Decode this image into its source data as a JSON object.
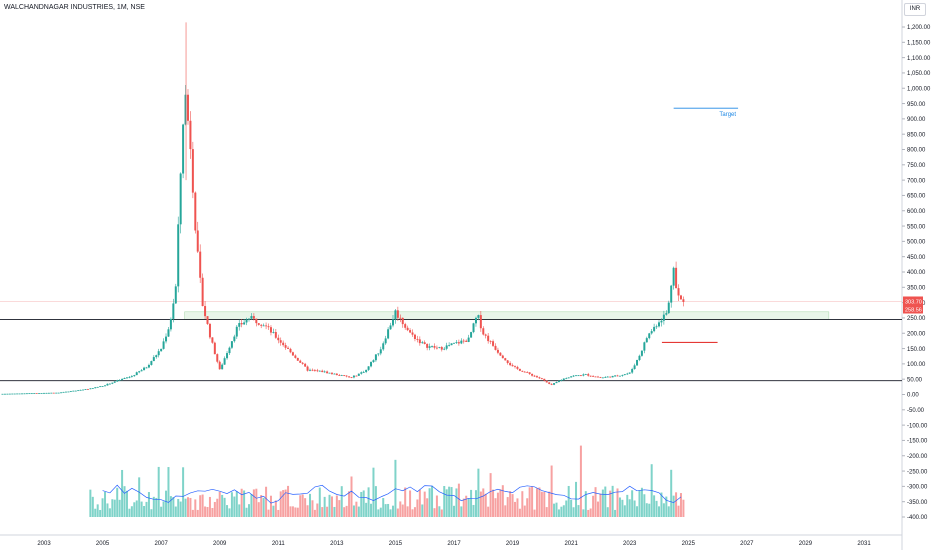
{
  "symbol_title": "WALCHANDNAGAR INDUSTRIES, 1M, NSE",
  "currency": "INR",
  "price_labels": {
    "last": "303.70",
    "second": "258.56"
  },
  "colors": {
    "up": "#26a69a",
    "down": "#ef5350",
    "vol_up": "#7fd3c9",
    "vol_down": "#f7a1a1",
    "ma": "#2962ff",
    "support": "#131722",
    "zone": "#e8f5e9",
    "target": "#1e88e5",
    "stop": "#e53935",
    "label_bg": "#ef5350"
  },
  "chart_data": {
    "type": "candlestick",
    "title": "WALCHANDNAGAR INDUSTRIES, 1M, NSE",
    "price_axis": {
      "ticks": [
        1200,
        1150,
        1100,
        1050,
        1000,
        950,
        900,
        850,
        800,
        750,
        700,
        650,
        600,
        550,
        500,
        450,
        400,
        350,
        300,
        250,
        200,
        150,
        100,
        50,
        0,
        -50,
        -100,
        -150,
        -200,
        -250,
        -300,
        -350,
        -400
      ],
      "tick_labels": [
        "1,200.00",
        "1,150.00",
        "1,100.00",
        "1,050.00",
        "1,000.00",
        "950.00",
        "900.00",
        "850.00",
        "800.00",
        "750.00",
        "700.00",
        "650.00",
        "600.00",
        "550.00",
        "500.00",
        "450.00",
        "400.00",
        "350.00",
        "300.00",
        "250.00",
        "200.00",
        "150.00",
        "100.00",
        "50.00",
        "0.00",
        "-50.00",
        "-100.00",
        "-150.00",
        "-200.00",
        "-250.00",
        "-300.00",
        "-350.00",
        "-400.00"
      ],
      "ylim": [
        -410,
        1250
      ]
    },
    "time_axis": {
      "labels": [
        "2003",
        "2005",
        "2007",
        "2009",
        "2011",
        "2013",
        "2015",
        "2017",
        "2019",
        "2021",
        "2023",
        "2025",
        "2027",
        "2029",
        "2031"
      ],
      "xlim": [
        2001.5,
        2032.5
      ]
    },
    "price_series": [
      [
        2001.5,
        2
      ],
      [
        2002,
        3
      ],
      [
        2002.5,
        4
      ],
      [
        2003,
        5
      ],
      [
        2003.5,
        6
      ],
      [
        2004,
        12
      ],
      [
        2004.5,
        18
      ],
      [
        2005,
        28
      ],
      [
        2005.5,
        45
      ],
      [
        2006,
        60
      ],
      [
        2006.5,
        90
      ],
      [
        2007,
        150
      ],
      [
        2007.3,
        230
      ],
      [
        2007.5,
        350
      ],
      [
        2007.7,
        800
      ],
      [
        2007.8,
        1000
      ],
      [
        2008,
        820
      ],
      [
        2008.2,
        500
      ],
      [
        2008.4,
        300
      ],
      [
        2008.7,
        180
      ],
      [
        2009,
        80
      ],
      [
        2009.3,
        150
      ],
      [
        2009.6,
        220
      ],
      [
        2010,
        250
      ],
      [
        2010.5,
        230
      ],
      [
        2011,
        180
      ],
      [
        2011.5,
        130
      ],
      [
        2012,
        80
      ],
      [
        2012.5,
        75
      ],
      [
        2013,
        65
      ],
      [
        2013.5,
        55
      ],
      [
        2014,
        80
      ],
      [
        2014.5,
        150
      ],
      [
        2015,
        270
      ],
      [
        2015.5,
        200
      ],
      [
        2016,
        160
      ],
      [
        2016.5,
        150
      ],
      [
        2017,
        165
      ],
      [
        2017.5,
        180
      ],
      [
        2017.8,
        260
      ],
      [
        2018,
        200
      ],
      [
        2018.5,
        140
      ],
      [
        2019,
        90
      ],
      [
        2019.5,
        70
      ],
      [
        2020,
        50
      ],
      [
        2020.3,
        30
      ],
      [
        2020.7,
        50
      ],
      [
        2021,
        60
      ],
      [
        2021.5,
        65
      ],
      [
        2022,
        55
      ],
      [
        2022.5,
        60
      ],
      [
        2023,
        70
      ],
      [
        2023.3,
        120
      ],
      [
        2023.6,
        190
      ],
      [
        2024,
        240
      ],
      [
        2024.3,
        270
      ],
      [
        2024.5,
        430
      ],
      [
        2024.6,
        330
      ],
      [
        2024.8,
        300
      ]
    ],
    "volume_series": [],
    "ma_series": [],
    "levels": [
      {
        "name": "Support / Resistance",
        "value": 245
      },
      {
        "name": "Base",
        "value": 45
      }
    ],
    "zone": {
      "from": 245,
      "to": 270,
      "x_from": 2007.8,
      "x_to": 2029.8
    },
    "target": {
      "label": "Target",
      "value": 935,
      "x_from": 2024.5,
      "x_to": 2026.7
    },
    "stop_line": {
      "value": 170,
      "x_from": 2024.1,
      "x_to": 2026.0
    },
    "last_price": 303.7
  }
}
